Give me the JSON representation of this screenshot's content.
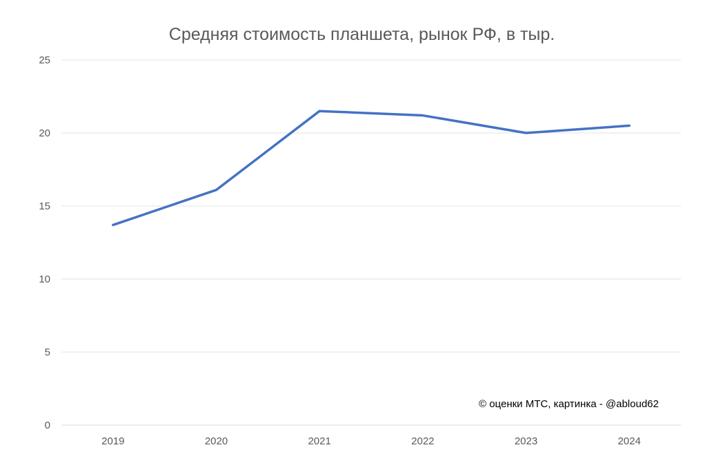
{
  "chart_data": {
    "type": "line",
    "title": "Средняя стоимость планшета, рынок РФ, в тыр.",
    "xlabel": "",
    "ylabel": "",
    "categories": [
      "2019",
      "2020",
      "2021",
      "2022",
      "2023",
      "2024"
    ],
    "series": [
      {
        "name": "Средняя стоимость",
        "values": [
          13.7,
          16.1,
          21.5,
          21.2,
          20.0,
          20.5
        ],
        "color": "#4472C4"
      }
    ],
    "ylim": [
      0,
      25
    ],
    "yticks": [
      "0",
      "5",
      "10",
      "15",
      "20",
      "25"
    ],
    "grid": true,
    "legend": "none",
    "annotation": "© оценки МТС, картинка - @abloud62"
  }
}
